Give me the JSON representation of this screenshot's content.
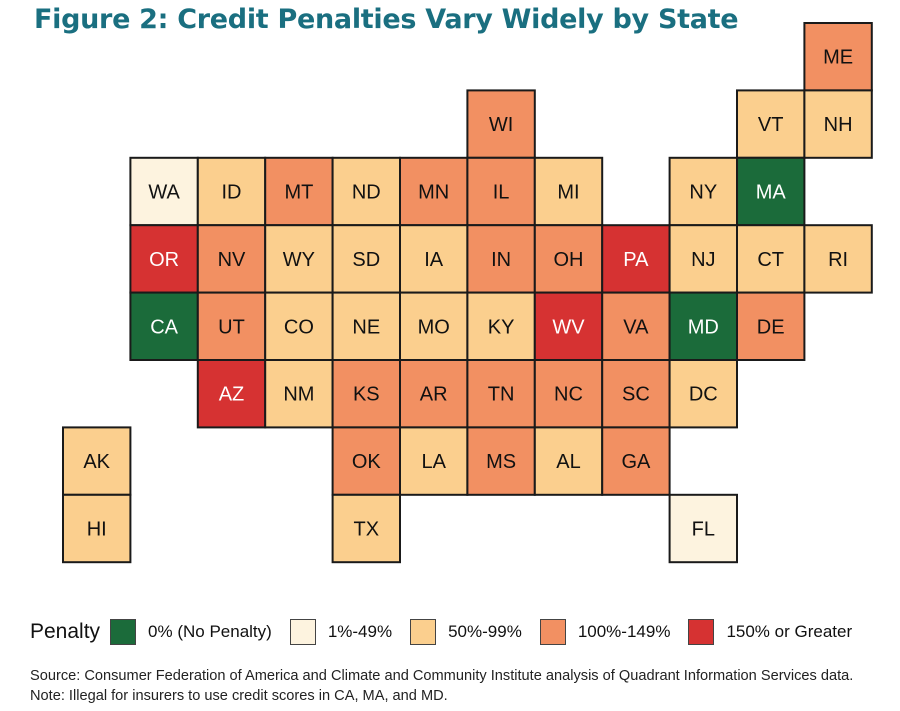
{
  "title": "Figure 2: Credit Penalties Vary Widely by State",
  "legend": {
    "title": "Penalty",
    "items": [
      {
        "key": "none",
        "label": "0% (No Penalty)",
        "color": "#1b6b3a"
      },
      {
        "key": "low",
        "label": "1%-49%",
        "color": "#fdf3df"
      },
      {
        "key": "mid",
        "label": "50%-99%",
        "color": "#fbcf8e"
      },
      {
        "key": "high",
        "label": "100%-149%",
        "color": "#f29062"
      },
      {
        "key": "vhigh",
        "label": "150% or Greater",
        "color": "#d63232"
      }
    ]
  },
  "states": [
    {
      "abbr": "ME",
      "row": 0,
      "col": 11,
      "cat": "high"
    },
    {
      "abbr": "WI",
      "row": 1,
      "col": 6,
      "cat": "high"
    },
    {
      "abbr": "VT",
      "row": 1,
      "col": 10,
      "cat": "mid"
    },
    {
      "abbr": "NH",
      "row": 1,
      "col": 11,
      "cat": "mid"
    },
    {
      "abbr": "WA",
      "row": 2,
      "col": 1,
      "cat": "low"
    },
    {
      "abbr": "ID",
      "row": 2,
      "col": 2,
      "cat": "mid"
    },
    {
      "abbr": "MT",
      "row": 2,
      "col": 3,
      "cat": "high"
    },
    {
      "abbr": "ND",
      "row": 2,
      "col": 4,
      "cat": "mid"
    },
    {
      "abbr": "MN",
      "row": 2,
      "col": 5,
      "cat": "high"
    },
    {
      "abbr": "IL",
      "row": 2,
      "col": 6,
      "cat": "high"
    },
    {
      "abbr": "MI",
      "row": 2,
      "col": 7,
      "cat": "mid"
    },
    {
      "abbr": "NY",
      "row": 2,
      "col": 9,
      "cat": "mid"
    },
    {
      "abbr": "MA",
      "row": 2,
      "col": 10,
      "cat": "none"
    },
    {
      "abbr": "OR",
      "row": 3,
      "col": 1,
      "cat": "vhigh"
    },
    {
      "abbr": "NV",
      "row": 3,
      "col": 2,
      "cat": "high"
    },
    {
      "abbr": "WY",
      "row": 3,
      "col": 3,
      "cat": "mid"
    },
    {
      "abbr": "SD",
      "row": 3,
      "col": 4,
      "cat": "mid"
    },
    {
      "abbr": "IA",
      "row": 3,
      "col": 5,
      "cat": "mid"
    },
    {
      "abbr": "IN",
      "row": 3,
      "col": 6,
      "cat": "high"
    },
    {
      "abbr": "OH",
      "row": 3,
      "col": 7,
      "cat": "high"
    },
    {
      "abbr": "PA",
      "row": 3,
      "col": 8,
      "cat": "vhigh"
    },
    {
      "abbr": "NJ",
      "row": 3,
      "col": 9,
      "cat": "mid"
    },
    {
      "abbr": "CT",
      "row": 3,
      "col": 10,
      "cat": "mid"
    },
    {
      "abbr": "RI",
      "row": 3,
      "col": 11,
      "cat": "mid"
    },
    {
      "abbr": "CA",
      "row": 4,
      "col": 1,
      "cat": "none"
    },
    {
      "abbr": "UT",
      "row": 4,
      "col": 2,
      "cat": "high"
    },
    {
      "abbr": "CO",
      "row": 4,
      "col": 3,
      "cat": "mid"
    },
    {
      "abbr": "NE",
      "row": 4,
      "col": 4,
      "cat": "mid"
    },
    {
      "abbr": "MO",
      "row": 4,
      "col": 5,
      "cat": "mid"
    },
    {
      "abbr": "KY",
      "row": 4,
      "col": 6,
      "cat": "mid"
    },
    {
      "abbr": "WV",
      "row": 4,
      "col": 7,
      "cat": "vhigh"
    },
    {
      "abbr": "VA",
      "row": 4,
      "col": 8,
      "cat": "high"
    },
    {
      "abbr": "MD",
      "row": 4,
      "col": 9,
      "cat": "none"
    },
    {
      "abbr": "DE",
      "row": 4,
      "col": 10,
      "cat": "high"
    },
    {
      "abbr": "AZ",
      "row": 5,
      "col": 2,
      "cat": "vhigh"
    },
    {
      "abbr": "NM",
      "row": 5,
      "col": 3,
      "cat": "mid"
    },
    {
      "abbr": "KS",
      "row": 5,
      "col": 4,
      "cat": "high"
    },
    {
      "abbr": "AR",
      "row": 5,
      "col": 5,
      "cat": "high"
    },
    {
      "abbr": "TN",
      "row": 5,
      "col": 6,
      "cat": "high"
    },
    {
      "abbr": "NC",
      "row": 5,
      "col": 7,
      "cat": "high"
    },
    {
      "abbr": "SC",
      "row": 5,
      "col": 8,
      "cat": "high"
    },
    {
      "abbr": "DC",
      "row": 5,
      "col": 9,
      "cat": "mid"
    },
    {
      "abbr": "AK",
      "row": 6,
      "col": 0,
      "cat": "mid"
    },
    {
      "abbr": "OK",
      "row": 6,
      "col": 4,
      "cat": "high"
    },
    {
      "abbr": "LA",
      "row": 6,
      "col": 5,
      "cat": "mid"
    },
    {
      "abbr": "MS",
      "row": 6,
      "col": 6,
      "cat": "high"
    },
    {
      "abbr": "AL",
      "row": 6,
      "col": 7,
      "cat": "mid"
    },
    {
      "abbr": "GA",
      "row": 6,
      "col": 8,
      "cat": "high"
    },
    {
      "abbr": "HI",
      "row": 7,
      "col": 0,
      "cat": "mid"
    },
    {
      "abbr": "TX",
      "row": 7,
      "col": 4,
      "cat": "mid"
    },
    {
      "abbr": "FL",
      "row": 7,
      "col": 9,
      "cat": "low"
    }
  ],
  "source": "Source: Consumer Federation of America and Climate and Community Institute analysis of Quadrant Information Services data. Note: Illegal for insurers to use credit scores in CA, MA, and MD."
}
